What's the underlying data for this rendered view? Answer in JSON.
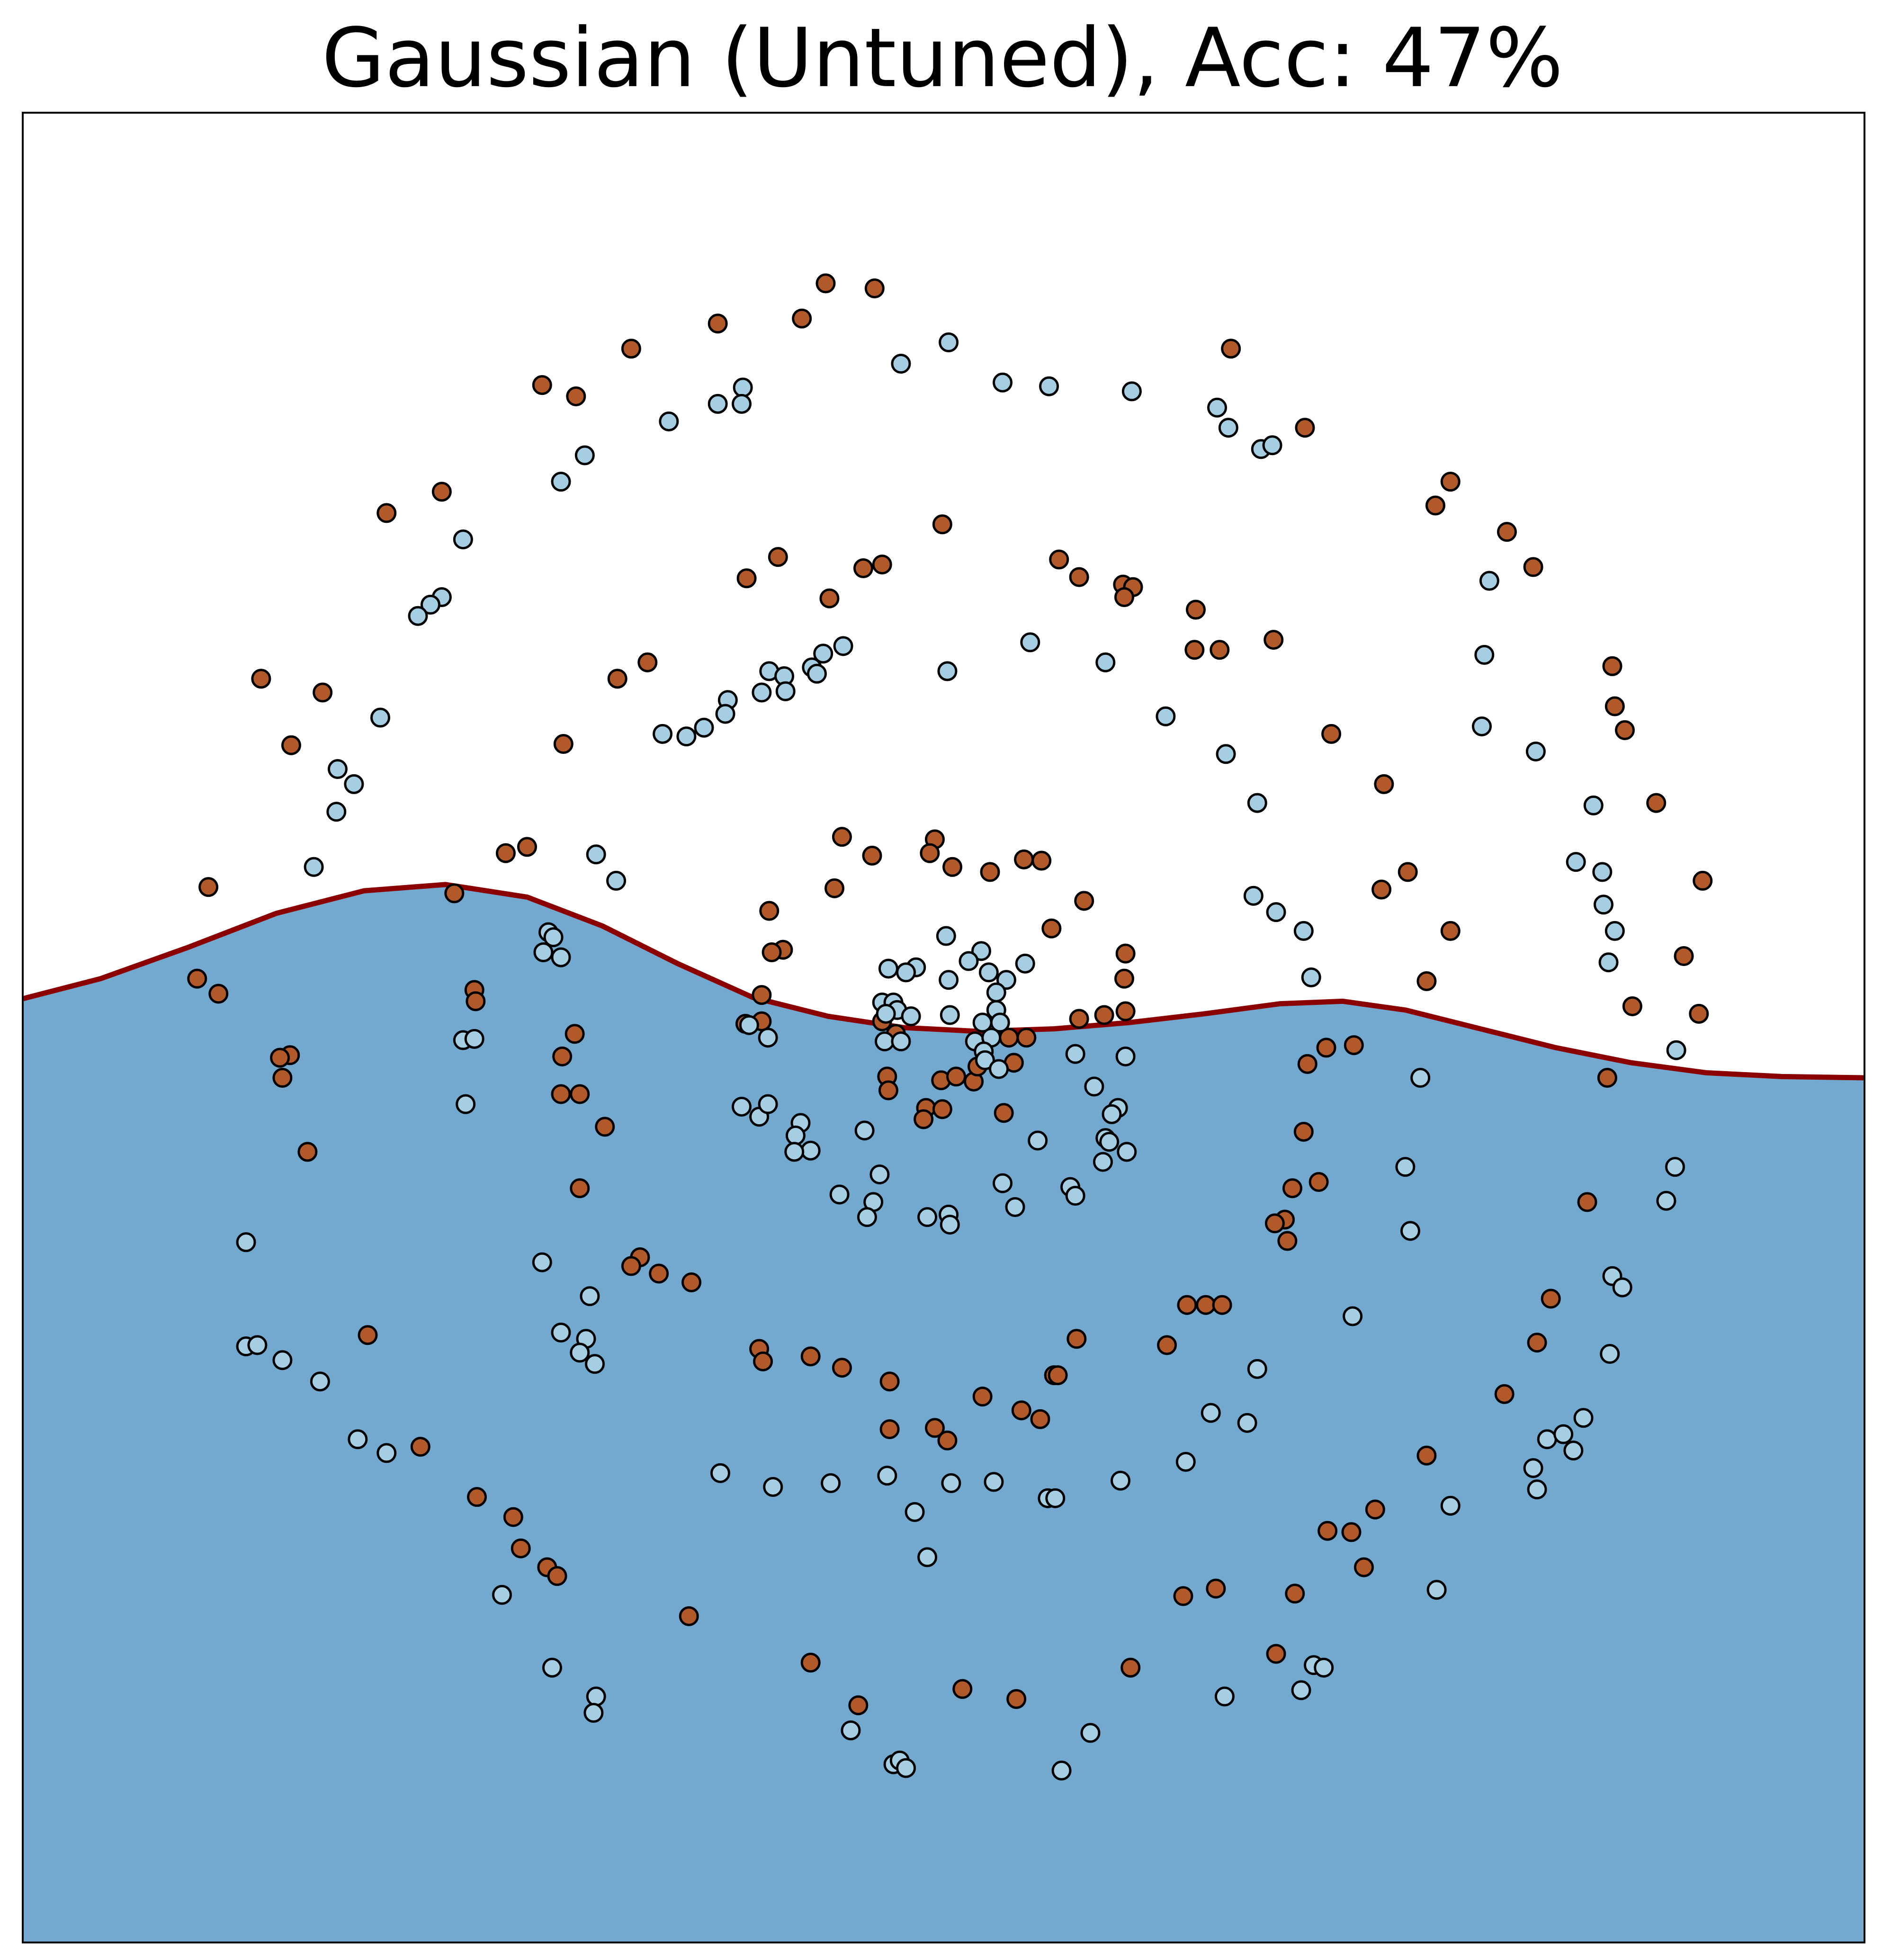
{
  "chart_data": {
    "type": "scatter",
    "title": "Gaussian (Untuned), Acc: 47%",
    "xlim": [
      18,
      1486
    ],
    "ylim": [
      1548,
      90
    ],
    "region_color": "#74a9cf",
    "marker_edge_color": "#000000",
    "boundary": {
      "color": "#8b0000",
      "x": [
        18,
        80,
        150,
        220,
        290,
        355,
        420,
        480,
        540,
        600,
        660,
        720,
        780,
        840,
        900,
        960,
        1020,
        1070,
        1120,
        1180,
        1240,
        1300,
        1360,
        1420,
        1486
      ],
      "y": [
        796,
        780,
        755,
        728,
        710,
        705,
        715,
        738,
        768,
        795,
        810,
        819,
        822,
        820,
        815,
        808,
        800,
        798,
        805,
        820,
        835,
        847,
        855,
        858,
        859
      ]
    },
    "series": [
      {
        "color": "#b15928",
        "x": [
          658,
          697,
          572,
          639,
          503,
          981,
          432,
          459,
          1040,
          352,
          308,
          1156,
          1144,
          751,
          1201,
          1222,
          620,
          595,
          688,
          703,
          860,
          844,
          895,
          903,
          896,
          661,
          953,
          1015,
          952,
          972,
          516,
          492,
          208,
          257,
          1285,
          1287,
          1295,
          232,
          449,
          1061,
          1103,
          1320,
          671,
          745,
          741,
          695,
          759,
          789,
          816,
          830,
          420,
          403,
          1122,
          1101,
          1357,
          166,
          665,
          864,
          613,
          362,
          838,
          1156,
          624,
          615,
          897,
          1342,
          157,
          174,
          378,
          379,
          896,
          1137,
          607,
          1301,
          1354,
          897,
          880,
          860,
          594,
          607,
          458,
          703,
          714,
          818,
          804,
          231,
          223,
          448,
          1079,
          1057,
          1042,
          225,
          707,
          708,
          750,
          776,
          762,
          779,
          808,
          1281,
          447,
          462,
          738,
          751,
          736,
          800,
          482,
          1039,
          245,
          1051,
          1030,
          462,
          1265,
          1024,
          1016,
          1026,
          510,
          503,
          525,
          551,
          1236,
          946,
          961,
          974,
          293,
          858,
          930,
          1225,
          605,
          608,
          646,
          671,
          840,
          843,
          709,
          783,
          1199,
          814,
          829,
          709,
          745,
          755,
          335,
          1137,
          380,
          1096,
          409,
          1058,
          1077,
          415,
          1087,
          436,
          444,
          969,
          943,
          1032,
          549,
          901,
          1017,
          646,
          767,
          684,
          810
        ],
        "y": [
          226,
          230,
          258,
          254,
          278,
          278,
          307,
          316,
          341,
          392,
          409,
          384,
          403,
          418,
          424,
          452,
          444,
          461,
          453,
          450,
          460,
          446,
          466,
          468,
          476,
          477,
          486,
          510,
          518,
          518,
          528,
          541,
          541,
          552,
          531,
          563,
          582,
          594,
          593,
          585,
          625,
          640,
          667,
          669,
          680,
          682,
          691,
          695,
          685,
          686,
          675,
          680,
          695,
          709,
          702,
          707,
          708,
          718,
          726,
          712,
          740,
          742,
          757,
          759,
          760,
          762,
          780,
          792,
          789,
          798,
          780,
          782,
          793,
          802,
          808,
          806,
          809,
          812,
          816,
          814,
          824,
          814,
          824,
          827,
          827,
          841,
          843,
          842,
          833,
          835,
          848,
          859,
          858,
          869,
          861,
          862,
          858,
          850,
          847,
          859,
          872,
          872,
          883,
          884,
          892,
          887,
          898,
          902,
          918,
          942,
          947,
          947,
          958,
          972,
          975,
          989,
          1002,
          1009,
          1015,
          1022,
          1035,
          1040,
          1040,
          1040,
          1064,
          1067,
          1072,
          1070,
          1075,
          1085,
          1081,
          1090,
          1096,
          1096,
          1101,
          1113,
          1111,
          1124,
          1131,
          1139,
          1138,
          1148,
          1153,
          1160,
          1193,
          1203,
          1209,
          1220,
          1221,
          1234,
          1249,
          1249,
          1256,
          1266,
          1272,
          1270,
          1288,
          1329,
          1318,
          1325,
          1346,
          1359,
          1354
        ]
      },
      {
        "color": "#a6cee3",
        "x": [
          756,
          718,
          592,
          572,
          591,
          799,
          836,
          902,
          970,
          979,
          1005,
          1014,
          533,
          466,
          447,
          369,
          352,
          343,
          333,
          1187,
          1183,
          821,
          881,
          672,
          656,
          647,
          651,
          613,
          625,
          607,
          626,
          755,
          580,
          578,
          561,
          547,
          528,
          303,
          929,
          1181,
          977,
          1224,
          269,
          282,
          268,
          1002,
          1270,
          250,
          475,
          491,
          1256,
          1277,
          1278,
          999,
          1017,
          1039,
          1287,
          437,
          441,
          433,
          447,
          1282,
          754,
          782,
          730,
          708,
          722,
          772,
          788,
          802,
          817,
          794,
          756,
          703,
          712,
          715,
          757,
          726,
          706,
          794,
          797,
          783,
          1045,
          1336,
          369,
          378,
          612,
          597,
          705,
          718,
          897,
          857,
          777,
          790,
          784,
          785,
          796,
          371,
          1132,
          591,
          605,
          612,
          872,
          891,
          886,
          638,
          634,
          646,
          633,
          689,
          881,
          884,
          898,
          879,
          827,
          1120,
          1335,
          701,
          799,
          853,
          857,
          669,
          696,
          691,
          739,
          756,
          757,
          809,
          1328,
          1124,
          196,
          432,
          470,
          1285,
          1293,
          1078,
          447,
          467,
          462,
          474,
          196,
          205,
          225,
          255,
          1283,
          1002,
          965,
          994,
          1262,
          1233,
          1246,
          1254,
          285,
          308,
          574,
          616,
          662,
          707,
          758,
          792,
          893,
          945,
          1222,
          1225,
          835,
          841,
          729,
          1156,
          739,
          1145,
          400,
          440,
          475,
          473,
          1047,
          1055,
          1037,
          976,
          869,
          678,
          846,
          712,
          717,
          722
        ],
        "y": [
          273,
          290,
          309,
          322,
          322,
          305,
          308,
          312,
          325,
          341,
          358,
          355,
          336,
          363,
          384,
          430,
          476,
          482,
          491,
          463,
          522,
          512,
          528,
          515,
          521,
          532,
          537,
          535,
          539,
          552,
          551,
          535,
          558,
          569,
          580,
          587,
          585,
          572,
          571,
          579,
          601,
          599,
          613,
          625,
          647,
          640,
          642,
          691,
          681,
          702,
          687,
          695,
          721,
          714,
          727,
          742,
          742,
          743,
          747,
          759,
          763,
          767,
          746,
          758,
          771,
          772,
          775,
          766,
          775,
          781,
          768,
          791,
          781,
          799,
          799,
          805,
          809,
          810,
          808,
          805,
          815,
          815,
          779,
          837,
          829,
          828,
          827,
          817,
          830,
          830,
          842,
          840,
          830,
          827,
          838,
          845,
          852,
          880,
          859,
          882,
          890,
          880,
          866,
          883,
          888,
          895,
          905,
          917,
          918,
          901,
          907,
          910,
          918,
          926,
          909,
          930,
          930,
          936,
          943,
          946,
          953,
          952,
          958,
          970,
          970,
          968,
          976,
          962,
          957,
          981,
          990,
          1006,
          1033,
          1017,
          1026,
          1049,
          1062,
          1067,
          1078,
          1087,
          1073,
          1072,
          1084,
          1101,
          1079,
          1091,
          1126,
          1134,
          1130,
          1147,
          1143,
          1156,
          1147,
          1158,
          1174,
          1185,
          1182,
          1176,
          1182,
          1181,
          1180,
          1165,
          1170,
          1187,
          1194,
          1194,
          1205,
          1200,
          1241,
          1267,
          1271,
          1329,
          1352,
          1365,
          1327,
          1329,
          1347,
          1352,
          1381,
          1379,
          1411,
          1406,
          1403,
          1409
        ]
      }
    ]
  }
}
